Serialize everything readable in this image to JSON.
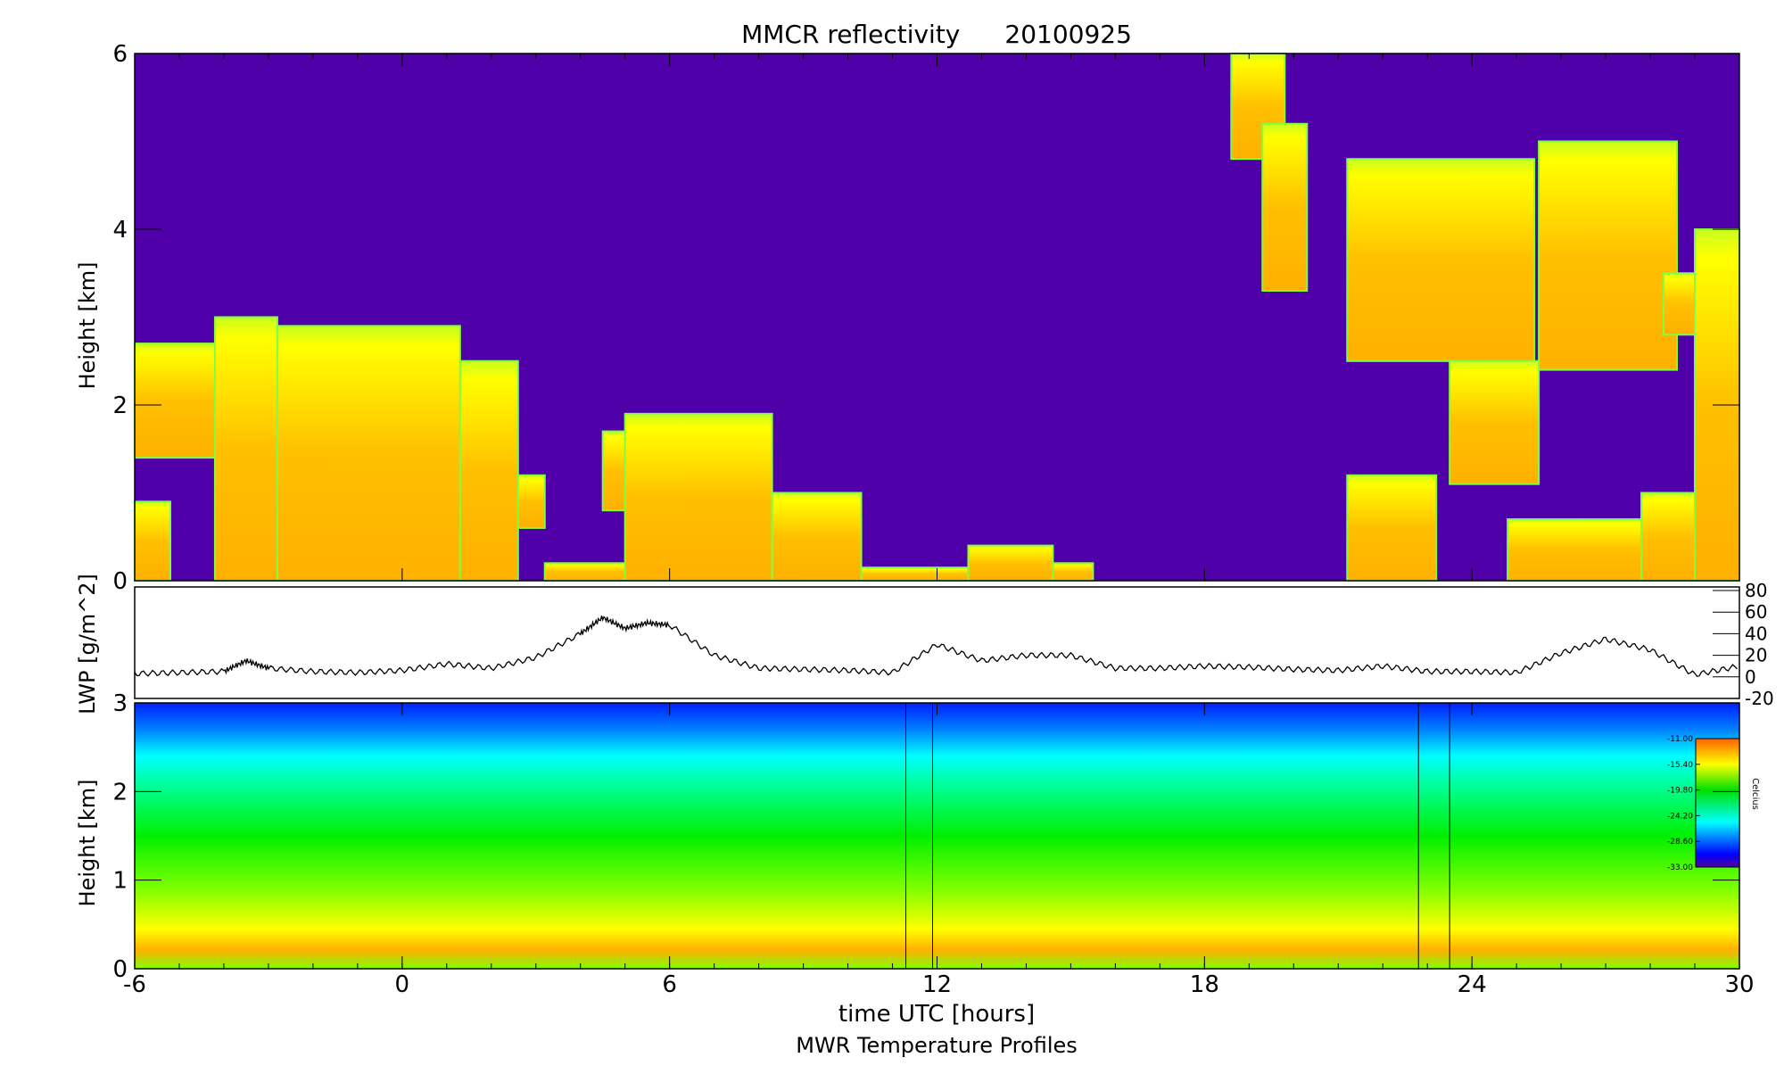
{
  "chart_data": [
    {
      "type": "heatmap",
      "title": "MMCR reflectivity",
      "date": "20100925",
      "ylabel": "Height [km]",
      "xlim": [
        -6,
        30
      ],
      "ylim": [
        0,
        6
      ],
      "xticks": [
        "-6",
        "0",
        "6",
        "12",
        "18",
        "24",
        "30"
      ],
      "yticks": [
        "0",
        "2",
        "4",
        "6"
      ],
      "background_color": "#5000a8",
      "cloud_colors": [
        "#80ff40",
        "#ffff00",
        "#ffa000"
      ],
      "cloud_regions": [
        {
          "start": -6,
          "end": -4.2,
          "base": 1.4,
          "top": 2.7
        },
        {
          "start": -6,
          "end": -5.2,
          "base": 0,
          "top": 0.9
        },
        {
          "start": -4.2,
          "end": -2.8,
          "base": 0,
          "top": 3.0
        },
        {
          "start": -2.8,
          "end": 1.3,
          "base": 0,
          "top": 2.9
        },
        {
          "start": 1.3,
          "end": 2.6,
          "base": 0,
          "top": 2.5
        },
        {
          "start": 2.6,
          "end": 3.2,
          "base": 0.6,
          "top": 1.2
        },
        {
          "start": 3.2,
          "end": 5.0,
          "base": 0,
          "top": 0.2
        },
        {
          "start": 4.5,
          "end": 5.0,
          "base": 0.8,
          "top": 1.7
        },
        {
          "start": 5.0,
          "end": 8.3,
          "base": 0,
          "top": 1.9
        },
        {
          "start": 8.3,
          "end": 10.3,
          "base": 0,
          "top": 1.0
        },
        {
          "start": 10.3,
          "end": 12.7,
          "base": 0,
          "top": 0.15
        },
        {
          "start": 12.7,
          "end": 14.6,
          "base": 0,
          "top": 0.4
        },
        {
          "start": 14.6,
          "end": 15.5,
          "base": 0,
          "top": 0.2
        },
        {
          "start": 18.6,
          "end": 19.8,
          "base": 4.8,
          "top": 6.0
        },
        {
          "start": 19.3,
          "end": 20.3,
          "base": 3.3,
          "top": 5.2
        },
        {
          "start": 21.2,
          "end": 23.2,
          "base": 0,
          "top": 1.2
        },
        {
          "start": 21.2,
          "end": 25.4,
          "base": 2.5,
          "top": 4.8
        },
        {
          "start": 23.5,
          "end": 25.5,
          "base": 1.1,
          "top": 2.5
        },
        {
          "start": 25.5,
          "end": 28.6,
          "base": 2.4,
          "top": 5.0
        },
        {
          "start": 24.8,
          "end": 30,
          "base": 0,
          "top": 0.7
        },
        {
          "start": 27.8,
          "end": 30,
          "base": 0,
          "top": 1.0
        },
        {
          "start": 28.3,
          "end": 29.0,
          "base": 2.8,
          "top": 3.5
        },
        {
          "start": 29.0,
          "end": 30,
          "base": 0,
          "top": 4.0
        }
      ]
    },
    {
      "type": "line",
      "ylabel": "LWP [g/m^2]",
      "xlim": [
        -6,
        30
      ],
      "ylim": [
        -20,
        80
      ],
      "yticks": [
        "-20",
        "0",
        "20",
        "40",
        "60",
        "80"
      ],
      "x": [
        -6,
        -5,
        -4,
        -3.5,
        -3,
        -2,
        -1,
        0,
        1,
        2,
        3,
        4,
        4.5,
        5,
        5.5,
        6,
        7,
        8,
        9,
        10,
        11,
        12,
        13,
        14,
        15,
        16,
        17,
        18,
        19,
        20,
        21,
        22,
        23,
        24,
        25,
        26,
        27,
        28,
        29,
        30
      ],
      "values": [
        3,
        4,
        5,
        15,
        8,
        5,
        4,
        6,
        12,
        8,
        18,
        40,
        55,
        45,
        50,
        48,
        20,
        8,
        7,
        6,
        4,
        30,
        15,
        20,
        20,
        8,
        8,
        10,
        9,
        7,
        6,
        10,
        5,
        5,
        4,
        22,
        35,
        25,
        2,
        10
      ]
    },
    {
      "type": "heatmap",
      "title": "MWR Temperature Profiles",
      "xlabel": "time UTC [hours]",
      "ylabel": "Height [km]",
      "xlim": [
        -6,
        30
      ],
      "ylim": [
        0,
        3
      ],
      "xticks": [
        "-6",
        "0",
        "6",
        "12",
        "18",
        "24",
        "30"
      ],
      "yticks": [
        "0",
        "1",
        "2",
        "3"
      ],
      "missing_data_bands": [
        [
          11.3,
          11.9
        ],
        [
          22.8,
          23.5
        ]
      ],
      "colorbar": {
        "label": "Celcius",
        "ticks": [
          "-11.00",
          "-15.40",
          "-19.80",
          "-24.20",
          "-28.60",
          "-33.00"
        ],
        "range": [
          -33,
          -11
        ]
      }
    }
  ]
}
